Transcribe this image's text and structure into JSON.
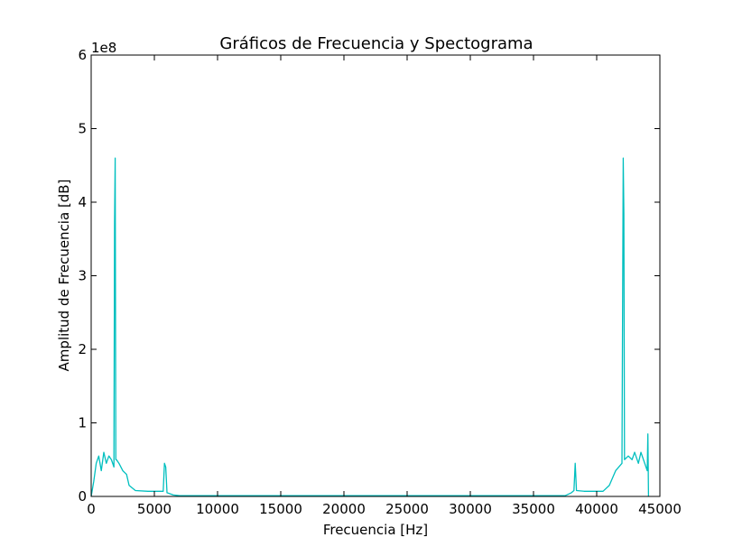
{
  "chart_data": {
    "type": "line",
    "title": "Gráficos de Frecuencia y Spectograma",
    "xlabel": "Frecuencia [Hz]",
    "ylabel": "Amplitud de Frecuencia [dB]",
    "y_offset_label": "1e8",
    "x": [
      0,
      200,
      400,
      600,
      800,
      1000,
      1200,
      1400,
      1600,
      1800,
      1850,
      1900,
      1950,
      2000,
      2200,
      2500,
      2800,
      3000,
      3500,
      4500,
      5700,
      5800,
      5900,
      6000,
      6500,
      7000,
      10000,
      20000,
      30000,
      37500,
      38000,
      38200,
      38300,
      38400,
      39000,
      40500,
      41000,
      41500,
      42000,
      42100,
      42150,
      42200,
      42500,
      42800,
      43000,
      43300,
      43500,
      43800,
      44000,
      44050,
      44100
    ],
    "values": [
      0,
      0.2,
      0.45,
      0.55,
      0.35,
      0.6,
      0.45,
      0.55,
      0.5,
      0.4,
      3.7,
      4.6,
      0.5,
      0.5,
      0.45,
      0.35,
      0.3,
      0.15,
      0.08,
      0.07,
      0.07,
      0.45,
      0.4,
      0.05,
      0.02,
      0.01,
      0.01,
      0.01,
      0.01,
      0.01,
      0.05,
      0.08,
      0.45,
      0.08,
      0.07,
      0.07,
      0.15,
      0.35,
      0.45,
      4.6,
      3.85,
      0.5,
      0.55,
      0.5,
      0.6,
      0.45,
      0.6,
      0.45,
      0.35,
      0.85,
      0
    ],
    "color": "#00bfbf",
    "xlim": [
      0,
      45000
    ],
    "xticks": [
      0,
      5000,
      10000,
      15000,
      20000,
      25000,
      30000,
      35000,
      40000,
      45000
    ],
    "ylim": [
      0,
      6
    ],
    "yticks": [
      0,
      1,
      2,
      3,
      4,
      5,
      6
    ],
    "grid": false
  }
}
